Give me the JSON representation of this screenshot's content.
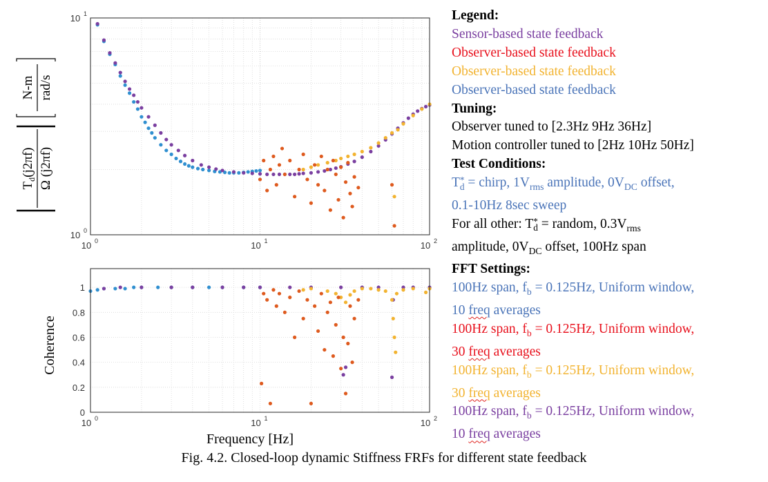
{
  "chart_data": [
    {
      "type": "scatter",
      "title": "",
      "xlabel": "",
      "ylabel_parts": {
        "num": "T",
        "num_sub": "d",
        "num_arg": "(j2πf)",
        "den": "Ω (j2πf)",
        "unit_num": "N-m",
        "unit_den": "rad/s"
      },
      "xscale": "log",
      "yscale": "log",
      "xlim": [
        1,
        100
      ],
      "ylim": [
        1,
        10
      ],
      "xticks": [
        {
          "base": "10",
          "exp": "0"
        },
        {
          "base": "10",
          "exp": "1"
        },
        {
          "base": "10",
          "exp": "2"
        }
      ],
      "yticks": [
        {
          "base": "10",
          "exp": "0"
        },
        {
          "base": "10",
          "exp": "1"
        }
      ],
      "grid": true,
      "series": [
        {
          "color": "#2f8fd0",
          "values_desc": "sensor-less low freq",
          "x": [
            1.1,
            1.2,
            1.3,
            1.4,
            1.5,
            1.6,
            1.7,
            1.8,
            1.9,
            2.0,
            2.1,
            2.2,
            2.3,
            2.4,
            2.6,
            2.8,
            3.0,
            3.2,
            3.4,
            3.6,
            3.8,
            4.0,
            4.3,
            4.6,
            5.0,
            5.4,
            5.8,
            6.2,
            6.6,
            7.0,
            7.5,
            8.0,
            8.5,
            9.0,
            9.5,
            10.0
          ],
          "y": [
            9.3,
            7.8,
            6.8,
            6.1,
            5.4,
            4.9,
            4.5,
            4.1,
            3.8,
            3.5,
            3.3,
            3.1,
            2.95,
            2.8,
            2.6,
            2.45,
            2.35,
            2.25,
            2.18,
            2.12,
            2.08,
            2.05,
            2.02,
            2.0,
            1.98,
            1.96,
            1.95,
            1.94,
            1.93,
            1.93,
            1.93,
            1.94,
            1.95,
            1.96,
            1.97,
            1.98
          ]
        },
        {
          "color": "#7a3fa0",
          "x": [
            1.1,
            1.2,
            1.3,
            1.4,
            1.5,
            1.6,
            1.7,
            1.8,
            1.9,
            2.0,
            2.2,
            2.4,
            2.6,
            2.8,
            3.0,
            3.3,
            3.6,
            4.0,
            4.5,
            5.0,
            5.5,
            6.0,
            7.0,
            8.0,
            9.0,
            10,
            11,
            12,
            13,
            14,
            15,
            16,
            17,
            18,
            20,
            22,
            24,
            26,
            28,
            30,
            33,
            36,
            40,
            45,
            50,
            55,
            60,
            65,
            70,
            75,
            80,
            85,
            90,
            95,
            100
          ],
          "y": [
            9.4,
            7.9,
            6.9,
            6.2,
            5.6,
            5.1,
            4.7,
            4.4,
            4.1,
            3.85,
            3.5,
            3.2,
            2.95,
            2.75,
            2.6,
            2.45,
            2.32,
            2.2,
            2.1,
            2.05,
            2.01,
            1.98,
            1.95,
            1.93,
            1.92,
            1.91,
            1.9,
            1.9,
            1.9,
            1.9,
            1.9,
            1.9,
            1.91,
            1.92,
            1.93,
            1.95,
            1.97,
            2.0,
            2.03,
            2.06,
            2.12,
            2.18,
            2.28,
            2.42,
            2.57,
            2.74,
            2.92,
            3.1,
            3.28,
            3.45,
            3.6,
            3.72,
            3.82,
            3.9,
            3.97
          ]
        },
        {
          "color": "#f2b330",
          "x": [
            18,
            20,
            22,
            25,
            28,
            30,
            33,
            36,
            40,
            45,
            50,
            55,
            60,
            62,
            65,
            70,
            80,
            90,
            100
          ],
          "y": [
            2.0,
            2.05,
            2.1,
            2.15,
            2.2,
            2.25,
            2.3,
            2.35,
            2.42,
            2.52,
            2.65,
            2.8,
            2.95,
            1.5,
            3.05,
            3.25,
            3.55,
            3.8,
            4.0
          ]
        },
        {
          "color": "#de5a1e",
          "x": [
            10,
            10.5,
            11,
            11.5,
            12,
            12.5,
            13,
            13.5,
            14,
            15,
            16,
            17,
            18,
            19,
            20,
            21,
            22,
            23,
            24,
            25,
            26,
            27,
            28,
            29,
            30,
            31,
            32,
            33,
            34,
            35,
            36,
            38,
            60,
            62
          ],
          "y": [
            1.8,
            2.2,
            1.6,
            2.0,
            2.3,
            1.7,
            2.1,
            2.5,
            1.9,
            2.2,
            1.5,
            2.0,
            2.35,
            1.8,
            1.4,
            2.1,
            1.7,
            2.3,
            1.6,
            2.0,
            1.3,
            2.2,
            1.9,
            1.45,
            2.05,
            1.2,
            1.75,
            2.15,
            1.55,
            1.35,
            1.85,
            1.65,
            1.7,
            1.1
          ]
        }
      ]
    },
    {
      "type": "scatter",
      "title": "",
      "xlabel": "Frequency [Hz]",
      "ylabel": "Coherence",
      "xscale": "log",
      "xlim": [
        1,
        100
      ],
      "ylim": [
        0,
        1.15
      ],
      "xticks": [
        {
          "base": "10",
          "exp": "0"
        },
        {
          "base": "10",
          "exp": "1"
        },
        {
          "base": "10",
          "exp": "2"
        }
      ],
      "yticks": [
        "0",
        "0.2",
        "0.4",
        "0.6",
        "0.8",
        "1"
      ],
      "grid": true,
      "series": [
        {
          "color": "#2f8fd0",
          "x": [
            1.0,
            1.1,
            1.2,
            1.4,
            1.6,
            1.8,
            2.0,
            2.5,
            3.0,
            4.0,
            5.0,
            6.0,
            8.0,
            10.0
          ],
          "y": [
            0.97,
            0.98,
            0.99,
            0.99,
            0.99,
            1.0,
            1.0,
            1.0,
            1.0,
            1.0,
            1.0,
            1.0,
            1.0,
            1.0
          ]
        },
        {
          "color": "#7a3fa0",
          "x": [
            1.2,
            1.5,
            2.0,
            3.0,
            4.0,
            6.0,
            8.0,
            10,
            15,
            20,
            30,
            31,
            32,
            40,
            50,
            60,
            61,
            70,
            80,
            100
          ],
          "y": [
            0.99,
            1.0,
            1.0,
            1.0,
            1.0,
            1.0,
            1.0,
            1.0,
            1.0,
            1.0,
            1.0,
            0.3,
            0.36,
            1.0,
            1.0,
            0.28,
            0.9,
            1.0,
            1.0,
            1.0
          ]
        },
        {
          "color": "#f2b330",
          "x": [
            18,
            20,
            25,
            28,
            30,
            32,
            34,
            36,
            40,
            45,
            50,
            55,
            60,
            61,
            62,
            63,
            64,
            70,
            80,
            95,
            100
          ],
          "y": [
            0.98,
            0.99,
            0.97,
            0.95,
            0.92,
            0.88,
            0.94,
            0.97,
            0.99,
            0.99,
            0.98,
            0.97,
            0.9,
            0.75,
            0.6,
            0.48,
            0.95,
            0.98,
            0.99,
            0.96,
            0.99
          ]
        },
        {
          "color": "#de5a1e",
          "x": [
            10.2,
            10.5,
            11,
            11.5,
            12,
            12.5,
            13,
            14,
            15,
            16,
            17,
            18,
            19,
            20,
            21,
            22,
            23,
            24,
            25,
            26,
            27,
            28,
            29,
            30,
            31,
            32,
            33,
            34,
            35,
            36,
            38
          ],
          "y": [
            0.23,
            0.95,
            0.9,
            0.07,
            0.98,
            0.85,
            0.95,
            0.8,
            0.92,
            0.6,
            0.97,
            0.75,
            0.9,
            0.07,
            0.85,
            0.65,
            0.95,
            0.5,
            0.8,
            0.88,
            0.45,
            0.7,
            0.92,
            0.35,
            0.6,
            0.15,
            0.55,
            0.85,
            0.4,
            0.75,
            0.9
          ]
        }
      ]
    }
  ],
  "legend": {
    "legend_header": "Legend:",
    "items": [
      {
        "text": "Sensor-based state feedback",
        "color": "#7a3fa0"
      },
      {
        "text": "Observer-based state feedback",
        "color": "#e8101c"
      },
      {
        "text": "Observer-based state feedback",
        "color": "#f2b330"
      },
      {
        "text": "Observer-based state feedback",
        "color": "#4a74b8"
      }
    ],
    "tuning_header": "Tuning:",
    "tuning_1": "Observer tuned to [2.3Hz 9Hz 36Hz]",
    "tuning_2": "Motion controller tuned to [2Hz 10Hz 50Hz]",
    "test_header": "Test Conditions:",
    "test_blue_a": " = chirp, 1V",
    "test_blue_rms": "rms",
    "test_blue_b": " amplitude, 0V",
    "test_blue_dc": "DC",
    "test_blue_c": " offset,",
    "test_blue_line2": "0.1-10Hz 8sec sweep",
    "test_other_a": "For all other: ",
    "test_other_b": " = random, 0.3V",
    "test_other_rms": "rms",
    "test_other_line2a": "amplitude, 0V",
    "test_other_dc": "DC",
    "test_other_line2b": " offset, 100Hz span",
    "td_T": "T",
    "td_sup": "*",
    "td_sub": "d",
    "fft_header": "FFT Settings:",
    "fft_a": "100Hz span, f",
    "fft_b_sub": "b",
    "fft_c": " = 0.125Hz, Uniform window,",
    "fft_lines": [
      {
        "color": "#4a74b8",
        "count": "10",
        "word": "freq",
        "rest": " averages"
      },
      {
        "color": "#e8101c",
        "count": "30",
        "word": "freq",
        "rest": " averages"
      },
      {
        "color": "#f2b330",
        "count": "30",
        "word": "freq",
        "rest": " averages"
      },
      {
        "color": "#7a3fa0",
        "count": "10",
        "word": "freq",
        "rest": " averages"
      }
    ]
  },
  "caption": "Fig. 4.2. Closed-loop dynamic Stiffness FRFs for different state feedback"
}
